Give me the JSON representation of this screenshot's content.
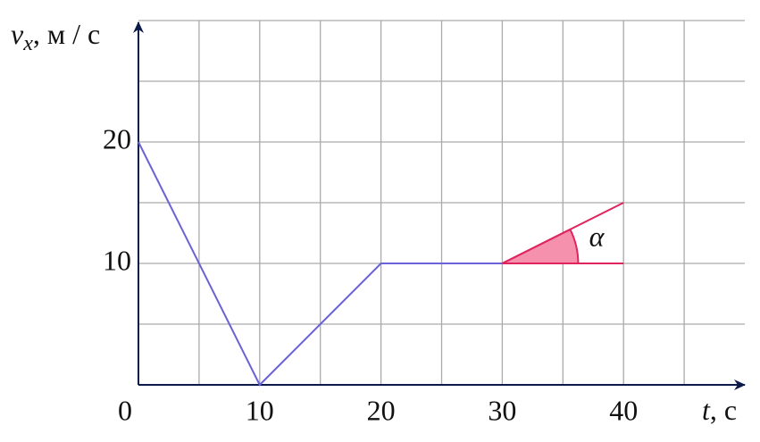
{
  "chart_data": {
    "type": "line",
    "y_label": {
      "symbol": "v",
      "subscript": "x",
      "unit": ", м / с"
    },
    "x_label": {
      "symbol": "t",
      "unit": ", с"
    },
    "series": [
      {
        "color": "#6a62d8",
        "x": [
          0,
          10,
          20,
          30
        ],
        "values": [
          20,
          0,
          10,
          10
        ]
      },
      {
        "color": "#e0245e",
        "x": [
          30,
          40
        ],
        "values": [
          10,
          15
        ]
      },
      {
        "color": "#e0245e",
        "x": [
          30,
          40
        ],
        "values": [
          10,
          10
        ]
      }
    ],
    "angle_label": "α",
    "xlim": [
      0,
      50
    ],
    "ylim": [
      0,
      30
    ],
    "xticks": [
      0,
      10,
      20,
      30,
      40
    ],
    "yticks": [
      10,
      20
    ],
    "xgrid": [
      5,
      10,
      15,
      20,
      25,
      30,
      35,
      40,
      45
    ],
    "ygrid": [
      5,
      10,
      15,
      20,
      25,
      30
    ],
    "grid": true
  }
}
